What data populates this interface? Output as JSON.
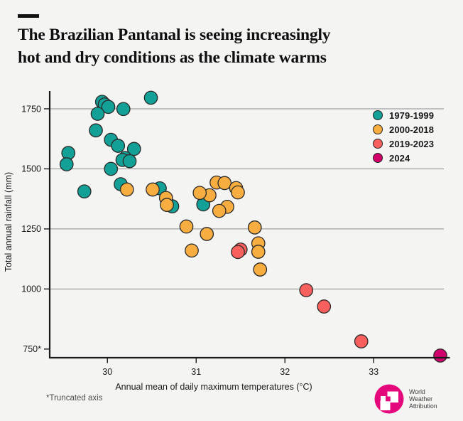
{
  "header": {
    "title_lines": [
      "The Brazilian Pantanal is seeing increasingly",
      "hot and dry conditions as the climate warms"
    ]
  },
  "logo": {
    "lines": [
      "World",
      "Weather",
      "Attribution"
    ],
    "color": "#e5087c"
  },
  "colors": {
    "background": "#f4f4f3",
    "gridline": "#8c8c8c",
    "axis": "#1a1a1a",
    "dot_stroke": "#2a2a2a",
    "text": "#1a1a1a"
  },
  "chart_data": {
    "type": "scatter",
    "title": "The Brazilian Pantanal is seeing increasingly hot and dry conditions as the climate warms",
    "xlabel": "Annual mean of daily maximum temperatures (°C)",
    "ylabel": "Total annual rainfall (mm)",
    "footnote": "*Truncated axis",
    "xlim": [
      29.35,
      33.85
    ],
    "ylim": [
      714,
      1818
    ],
    "x_ticks": [
      {
        "value": 30,
        "label": "30"
      },
      {
        "value": 31,
        "label": "31"
      },
      {
        "value": 32,
        "label": "32"
      },
      {
        "value": 33,
        "label": "33"
      }
    ],
    "y_ticks": [
      {
        "value": 1750,
        "label": "1750"
      },
      {
        "value": 1500,
        "label": "1500"
      },
      {
        "value": 1250,
        "label": "1250"
      },
      {
        "value": 1000,
        "label": "1000"
      },
      {
        "value": 750,
        "label": "750*"
      }
    ],
    "gridlines_y": [
      1750,
      1500,
      1250,
      1000
    ],
    "grid": true,
    "legend_position": "top-right",
    "truncated_axis": true,
    "series": [
      {
        "name": "1979-1999",
        "color": "#13a096",
        "points": [
          [
            29.94,
            1779
          ],
          [
            29.97,
            1768
          ],
          [
            30.01,
            1758
          ],
          [
            30.18,
            1749
          ],
          [
            30.49,
            1796
          ],
          [
            29.89,
            1729
          ],
          [
            29.87,
            1660
          ],
          [
            30.04,
            1621
          ],
          [
            30.12,
            1596
          ],
          [
            30.3,
            1583
          ],
          [
            29.56,
            1566
          ],
          [
            30.2,
            1545
          ],
          [
            30.17,
            1537
          ],
          [
            30.25,
            1532
          ],
          [
            29.54,
            1519
          ],
          [
            30.04,
            1500
          ],
          [
            30.15,
            1436
          ],
          [
            29.74,
            1406
          ],
          [
            30.59,
            1419
          ],
          [
            30.73,
            1344
          ],
          [
            31.08,
            1352
          ]
        ]
      },
      {
        "name": "2000-2018",
        "color": "#f7ad40",
        "points": [
          [
            30.22,
            1414
          ],
          [
            30.51,
            1414
          ],
          [
            30.66,
            1379
          ],
          [
            30.67,
            1350
          ],
          [
            31.15,
            1390
          ],
          [
            31.04,
            1400
          ],
          [
            31.23,
            1443
          ],
          [
            31.32,
            1441
          ],
          [
            31.45,
            1420
          ],
          [
            31.47,
            1402
          ],
          [
            31.35,
            1342
          ],
          [
            31.26,
            1325
          ],
          [
            30.89,
            1260
          ],
          [
            31.12,
            1229
          ],
          [
            31.66,
            1256
          ],
          [
            30.95,
            1160
          ],
          [
            31.7,
            1190
          ],
          [
            31.7,
            1155
          ],
          [
            31.72,
            1081
          ]
        ]
      },
      {
        "name": "2019-2023",
        "color": "#f7605c",
        "points": [
          [
            31.5,
            1164
          ],
          [
            31.47,
            1154
          ],
          [
            32.24,
            995
          ],
          [
            32.44,
            927
          ],
          [
            32.86,
            782
          ]
        ]
      },
      {
        "name": "2024",
        "color": "#d2006b",
        "points": [
          [
            33.75,
            723
          ]
        ]
      }
    ]
  }
}
